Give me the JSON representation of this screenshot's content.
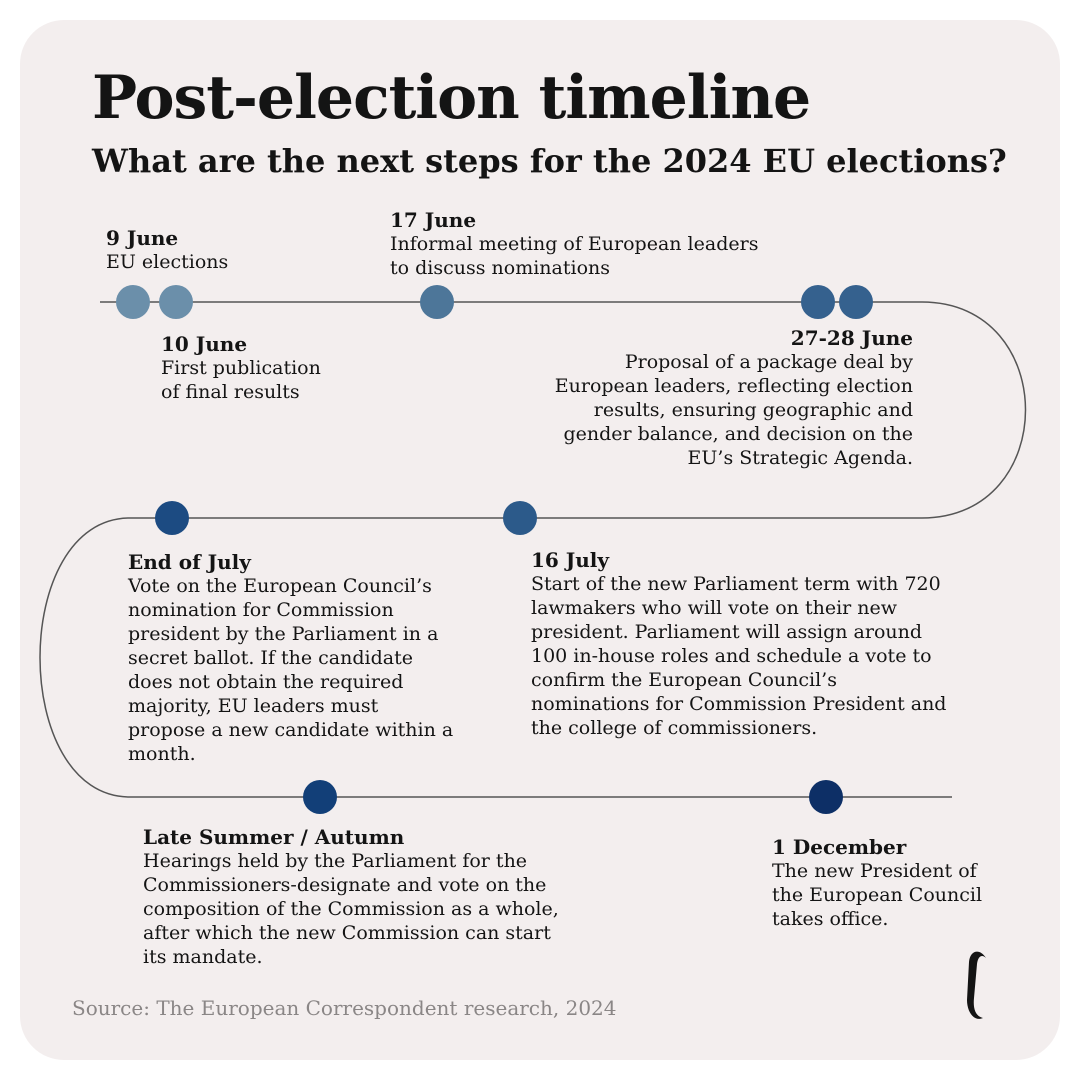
{
  "header": {
    "title": "Post-election timeline",
    "subtitle": "What are the next steps for the 2024 EU elections?"
  },
  "events": [
    {
      "date": "9 June",
      "desc": "EU elections",
      "color": "#6b8faa"
    },
    {
      "date": "10 June",
      "desc": "First publication\nof final results",
      "color": "#6b8faa"
    },
    {
      "date": "17 June",
      "desc": "Informal meeting of European leaders\nto discuss nominations",
      "color": "#4d7699"
    },
    {
      "date": "27-28 June",
      "desc": "Proposal of a package deal by\nEuropean leaders, reflecting election\nresults, ensuring geographic and\ngender balance, and decision on the\nEU’s Strategic Agenda.",
      "color": "#35618e"
    },
    {
      "date": "16 July",
      "desc": "Start of the new Parliament term with 720\nlawmakers who will vote on their new\npresident. Parliament will assign around\n100 in-house roles and schedule a vote to\nconfirm the European Council’s\nnominations for Commission President and\nthe college of commissioners.",
      "color": "#2c5a8a"
    },
    {
      "date": "End of July",
      "desc": "Vote on the European Council’s\nnomination for Commission\npresident by the Parliament in a\nsecret ballot. If the candidate\ndoes not obtain the required\nmajority, EU leaders must\npropose a new candidate within a\nmonth.",
      "color": "#1c4b82"
    },
    {
      "date": "Late Summer / Autumn",
      "desc": "Hearings held by the Parliament for the\nCommissioners-designate and vote on the\ncomposition of the Commission as a whole,\nafter which the new Commission can start\nits mandate.",
      "color": "#123f78"
    },
    {
      "date": "1 December",
      "desc": "The new President of\nthe European Council\ntakes office.",
      "color": "#0d2f66"
    }
  ],
  "source": "Source: The European Correspondent research, 2024",
  "logo_icon": "european-correspondent-logo-icon",
  "colors": {
    "background": "#f3eeee",
    "line": "#555555"
  }
}
